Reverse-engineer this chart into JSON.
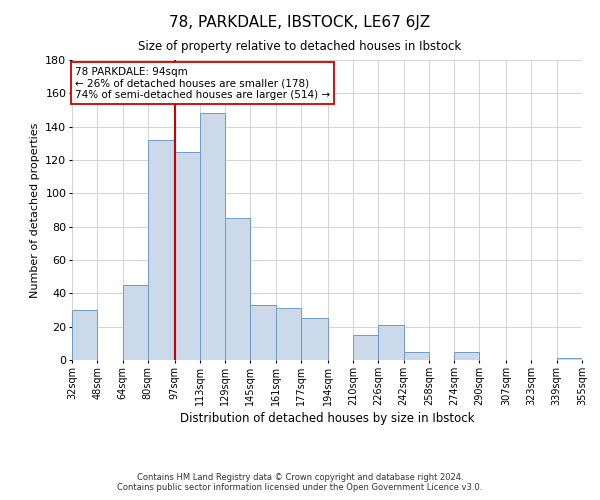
{
  "title": "78, PARKDALE, IBSTOCK, LE67 6JZ",
  "subtitle": "Size of property relative to detached houses in Ibstock",
  "xlabel": "Distribution of detached houses by size in Ibstock",
  "ylabel": "Number of detached properties",
  "bar_color": "#ccd9ea",
  "bar_edge_color": "#6b9dc8",
  "bin_edges": [
    32,
    48,
    64,
    80,
    97,
    113,
    129,
    145,
    161,
    177,
    194,
    210,
    226,
    242,
    258,
    274,
    290,
    307,
    323,
    339,
    355
  ],
  "bar_heights": [
    30,
    0,
    45,
    132,
    125,
    148,
    85,
    33,
    31,
    25,
    0,
    15,
    21,
    5,
    0,
    5,
    0,
    0,
    0,
    1
  ],
  "x_tick_labels": [
    "32sqm",
    "48sqm",
    "64sqm",
    "80sqm",
    "97sqm",
    "113sqm",
    "129sqm",
    "145sqm",
    "161sqm",
    "177sqm",
    "194sqm",
    "210sqm",
    "226sqm",
    "242sqm",
    "258sqm",
    "274sqm",
    "290sqm",
    "307sqm",
    "323sqm",
    "339sqm",
    "355sqm"
  ],
  "x_tick_positions": [
    32,
    48,
    64,
    80,
    97,
    113,
    129,
    145,
    161,
    177,
    194,
    210,
    226,
    242,
    258,
    274,
    290,
    307,
    323,
    339,
    355
  ],
  "ylim": [
    0,
    180
  ],
  "yticks": [
    0,
    20,
    40,
    60,
    80,
    100,
    120,
    140,
    160,
    180
  ],
  "xlim": [
    32,
    355
  ],
  "property_line_x": 97,
  "property_line_color": "#cc0000",
  "annotation_text": "78 PARKDALE: 94sqm\n← 26% of detached houses are smaller (178)\n74% of semi-detached houses are larger (514) →",
  "footer_line1": "Contains HM Land Registry data © Crown copyright and database right 2024.",
  "footer_line2": "Contains public sector information licensed under the Open Government Licence v3.0.",
  "background_color": "#ffffff",
  "grid_color": "#cccccc"
}
